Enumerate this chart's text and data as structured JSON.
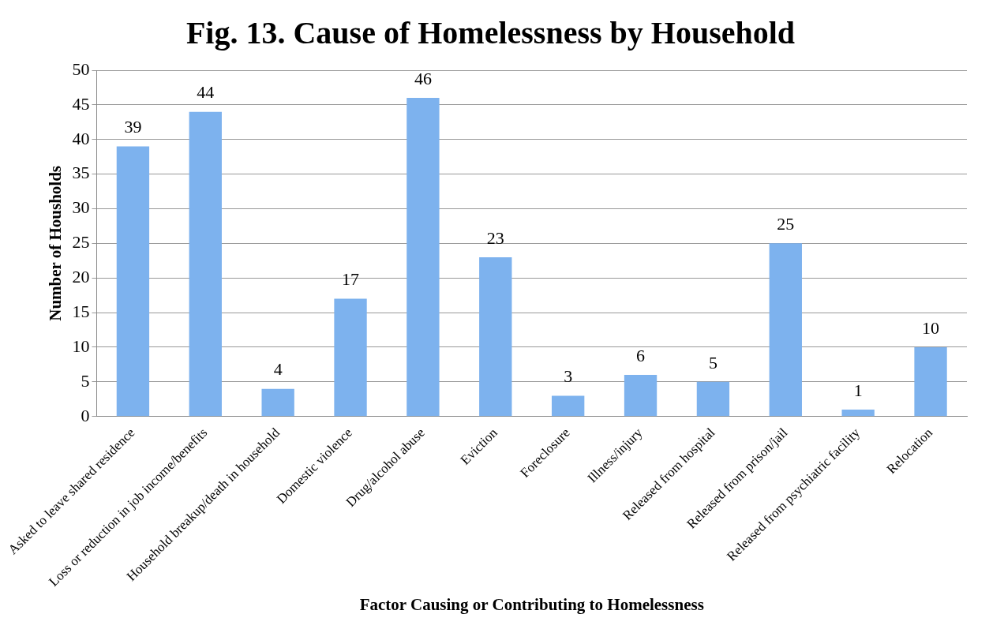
{
  "chart_data": {
    "type": "bar",
    "title": "Fig. 13. Cause of Homelessness by Household",
    "xlabel": "Factor Causing or Contributing to Homelessness",
    "ylabel": "Number of Housholds",
    "categories": [
      "Asked to leave shared residence",
      "Loss or reduction in job income/benefits",
      "Household breakup/death in household",
      "Domestic violence",
      "Drug/alcohol abuse",
      "Eviction",
      "Foreclosure",
      "Illness/injury",
      "Released from hospital",
      "Released from prison/jail",
      "Released from psychiatric facility",
      "Relocation"
    ],
    "values": [
      39,
      44,
      4,
      17,
      46,
      23,
      3,
      6,
      5,
      25,
      1,
      10
    ],
    "color": "#7db2ee",
    "ylim": [
      0,
      50
    ],
    "yticks": [
      0,
      5,
      10,
      15,
      20,
      25,
      30,
      35,
      40,
      45,
      50
    ],
    "grid": "y",
    "data_labels": true,
    "legend": false
  }
}
